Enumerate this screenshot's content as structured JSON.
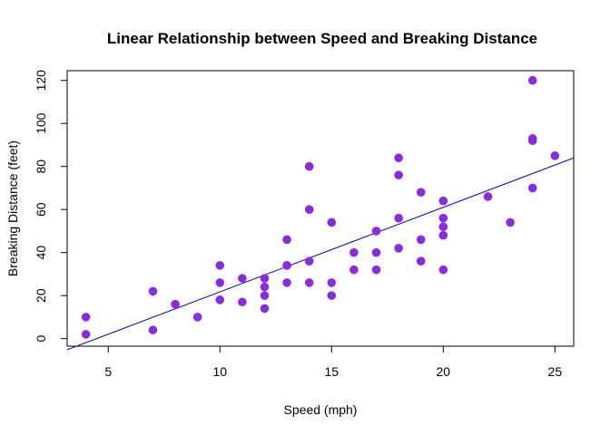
{
  "chart_data": {
    "type": "scatter",
    "title": "Linear Relationship between Speed and Breaking Distance",
    "xlabel": "Speed (mph)",
    "ylabel": "Breaking Distance (feet)",
    "xlim": [
      3.16,
      25.84
    ],
    "ylim": [
      -3.52,
      124.52
    ],
    "x_ticks": [
      5,
      10,
      15,
      20,
      25
    ],
    "y_ticks": [
      0,
      20,
      40,
      60,
      80,
      100,
      120
    ],
    "grid": false,
    "legend": "none",
    "point_color": "#8a2be2",
    "line_color": "#0000cd",
    "regression_line": {
      "intercept": -17.58,
      "slope": 3.93
    },
    "points": [
      {
        "x": 4,
        "y": 2
      },
      {
        "x": 4,
        "y": 10
      },
      {
        "x": 7,
        "y": 4
      },
      {
        "x": 7,
        "y": 22
      },
      {
        "x": 8,
        "y": 16
      },
      {
        "x": 9,
        "y": 10
      },
      {
        "x": 10,
        "y": 18
      },
      {
        "x": 10,
        "y": 26
      },
      {
        "x": 10,
        "y": 34
      },
      {
        "x": 11,
        "y": 17
      },
      {
        "x": 11,
        "y": 28
      },
      {
        "x": 12,
        "y": 14
      },
      {
        "x": 12,
        "y": 20
      },
      {
        "x": 12,
        "y": 24
      },
      {
        "x": 12,
        "y": 28
      },
      {
        "x": 13,
        "y": 26
      },
      {
        "x": 13,
        "y": 34
      },
      {
        "x": 13,
        "y": 34
      },
      {
        "x": 13,
        "y": 46
      },
      {
        "x": 14,
        "y": 26
      },
      {
        "x": 14,
        "y": 36
      },
      {
        "x": 14,
        "y": 60
      },
      {
        "x": 14,
        "y": 80
      },
      {
        "x": 15,
        "y": 20
      },
      {
        "x": 15,
        "y": 26
      },
      {
        "x": 15,
        "y": 54
      },
      {
        "x": 16,
        "y": 32
      },
      {
        "x": 16,
        "y": 40
      },
      {
        "x": 17,
        "y": 32
      },
      {
        "x": 17,
        "y": 40
      },
      {
        "x": 17,
        "y": 50
      },
      {
        "x": 18,
        "y": 42
      },
      {
        "x": 18,
        "y": 56
      },
      {
        "x": 18,
        "y": 76
      },
      {
        "x": 18,
        "y": 84
      },
      {
        "x": 19,
        "y": 36
      },
      {
        "x": 19,
        "y": 46
      },
      {
        "x": 19,
        "y": 68
      },
      {
        "x": 20,
        "y": 32
      },
      {
        "x": 20,
        "y": 48
      },
      {
        "x": 20,
        "y": 52
      },
      {
        "x": 20,
        "y": 56
      },
      {
        "x": 20,
        "y": 64
      },
      {
        "x": 22,
        "y": 66
      },
      {
        "x": 23,
        "y": 54
      },
      {
        "x": 24,
        "y": 70
      },
      {
        "x": 24,
        "y": 92
      },
      {
        "x": 24,
        "y": 93
      },
      {
        "x": 24,
        "y": 120
      },
      {
        "x": 25,
        "y": 85
      }
    ]
  }
}
